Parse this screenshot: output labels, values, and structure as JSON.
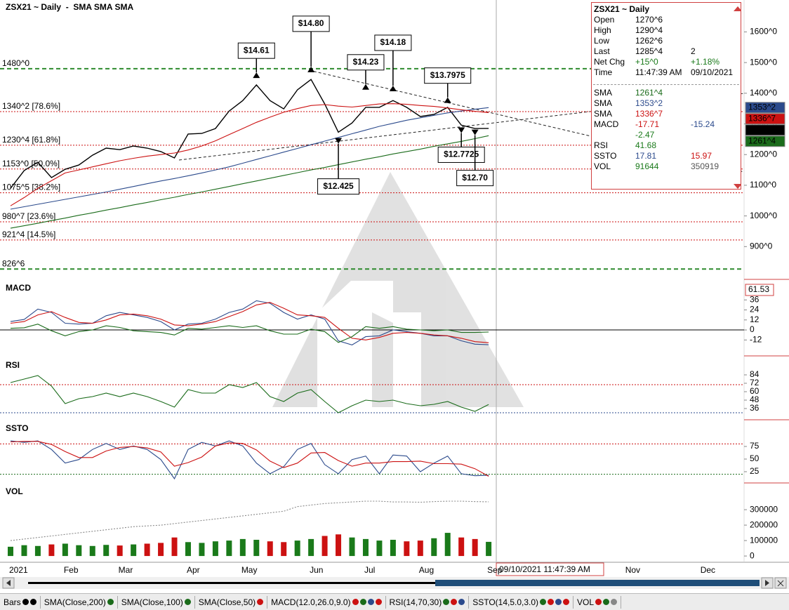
{
  "chart_data": [
    {
      "type": "line",
      "title": "ZSX21 ~ Daily  -  SMA SMA SMA",
      "categories": [
        "2021",
        null,
        null,
        null,
        "Feb",
        null,
        null,
        null,
        "Mar",
        null,
        null,
        null,
        null,
        "Apr",
        null,
        null,
        null,
        "May",
        null,
        null,
        null,
        null,
        "Jun",
        null,
        null,
        null,
        "Jul",
        null,
        null,
        null,
        "Aug",
        null,
        null,
        null,
        null,
        "Sep"
      ],
      "later_months": [
        "Nov",
        "Dec"
      ],
      "ylim": [
        800,
        1704
      ],
      "yticks": [
        {
          "value": 1600,
          "label": "1600^0"
        },
        {
          "value": 1500,
          "label": "1500^0"
        },
        {
          "value": 1400,
          "label": "1400^0"
        },
        {
          "value": 1300,
          "label": "1300^0"
        },
        {
          "value": 1200,
          "label": "1200^0"
        },
        {
          "value": 1100,
          "label": "1100^0"
        },
        {
          "value": 1000,
          "label": "1000^0"
        },
        {
          "value": 900,
          "label": "900^0"
        }
      ],
      "series": [
        {
          "color": "#000000",
          "values": [
            1090,
            1148,
            1175,
            1125,
            1152,
            1166,
            1198,
            1221,
            1216,
            1228,
            1221,
            1210,
            1189,
            1267,
            1269,
            1285,
            1342,
            1376,
            1427,
            1376,
            1349,
            1411,
            1445,
            1365,
            1273,
            1303,
            1354,
            1354,
            1376,
            1354,
            1324,
            1331,
            1354,
            1296,
            1285,
            1285.5
          ]
        },
        {
          "color": "#1a6b1a",
          "values": [
            960,
            968,
            976,
            985,
            993,
            1002,
            1010,
            1019,
            1027,
            1036,
            1044,
            1053,
            1061,
            1070,
            1078,
            1087,
            1096,
            1105,
            1114,
            1123,
            1132,
            1141,
            1150,
            1158,
            1167,
            1176,
            1185,
            1193,
            1202,
            1210,
            1218,
            1227,
            1235,
            1243,
            1252,
            1261.5
          ]
        },
        {
          "color": "#2b4a8c",
          "values": [
            1022,
            1030,
            1038,
            1046,
            1054,
            1062,
            1070,
            1078,
            1087,
            1096,
            1105,
            1114,
            1122,
            1131,
            1140,
            1150,
            1160,
            1172,
            1184,
            1196,
            1208,
            1220,
            1232,
            1244,
            1256,
            1268,
            1280,
            1292,
            1302,
            1312,
            1320,
            1328,
            1336,
            1342,
            1348,
            1353.25
          ]
        },
        {
          "color": "#cc1111",
          "values": [
            1033,
            1060,
            1090,
            1115,
            1140,
            1150,
            1160,
            1170,
            1180,
            1188,
            1195,
            1200,
            1205,
            1215,
            1228,
            1245,
            1265,
            1285,
            1305,
            1322,
            1338,
            1350,
            1360,
            1363,
            1358,
            1355,
            1360,
            1365,
            1366,
            1364,
            1360,
            1357,
            1352,
            1346,
            1341,
            1336.875
          ]
        }
      ],
      "levels": [
        {
          "value": 1480,
          "label": "1480^0",
          "color": "#2e8b2e",
          "style": "dashed"
        },
        {
          "value": 1340.25,
          "label": "1340^2 [78.6%]",
          "color": "#cc1111",
          "style": "dotted"
        },
        {
          "value": 1230.5,
          "label": "1230^4 [61.8%]",
          "color": "#cc1111",
          "style": "dotted"
        },
        {
          "value": 1153,
          "label": "1153^0 [50.0%]",
          "color": "#cc1111",
          "style": "dotted"
        },
        {
          "value": 1075.625,
          "label": "1075^5 [38.2%]",
          "color": "#cc1111",
          "style": "dotted"
        },
        {
          "value": 980.875,
          "label": "980^7 [23.6%]",
          "color": "#cc1111",
          "style": "dotted"
        },
        {
          "value": 921.5,
          "label": "921^4 [14.5%]",
          "color": "#cc1111",
          "style": "dotted"
        },
        {
          "value": 826.75,
          "label": "826^6",
          "color": "#2e8b2e",
          "style": "dashed"
        }
      ],
      "annotations": [
        {
          "x": 18,
          "value": 1461,
          "label": "$14.61"
        },
        {
          "x": 22,
          "value": 1480,
          "label": "$14.80"
        },
        {
          "x": 26,
          "value": 1423,
          "label": "$14.23"
        },
        {
          "x": 28,
          "value": 1418,
          "label": "$14.18"
        },
        {
          "x": 32,
          "value": 1379.75,
          "label": "$13.7975"
        },
        {
          "x": 24,
          "value": 1242.5,
          "label": "$12.425"
        },
        {
          "x": 33,
          "value": 1277.25,
          "label": "$12.7725"
        },
        {
          "x": 34,
          "value": 1270,
          "label": "$12.70"
        }
      ],
      "tags": [
        {
          "value": 1353.25,
          "label": "1353^2",
          "color": "#2b4a8c"
        },
        {
          "value": 1336.875,
          "label": "1336^7",
          "color": "#cc1111"
        },
        {
          "value": 1285.5,
          "label": "1285^4",
          "color": "#000000"
        },
        {
          "value": 1261.5,
          "label": "1261^4",
          "color": "#1a6b1a"
        }
      ]
    },
    {
      "type": "line",
      "title": "MACD",
      "cursor_label": "61.53",
      "ylim": [
        -29.4,
        58.9
      ],
      "yticks": [
        36,
        24,
        12,
        0,
        -12
      ],
      "levels": [
        {
          "value": 0,
          "color": "#000000",
          "style": "solid"
        }
      ],
      "series": [
        {
          "color": "#2b4a8c",
          "values": [
            10,
            12.6,
            25,
            21,
            8,
            7,
            8,
            17,
            21,
            18,
            15,
            10,
            0,
            7,
            8,
            13,
            21,
            25,
            35,
            32,
            21,
            13,
            18,
            13,
            -13,
            -18,
            -8,
            -7,
            0,
            -2,
            -4,
            -7,
            -7,
            -13,
            -17,
            -17.71
          ]
        },
        {
          "color": "#cc1111",
          "values": [
            8,
            10,
            18,
            22,
            15,
            9,
            8,
            12,
            18,
            19,
            17,
            13,
            6,
            5,
            7,
            10,
            16,
            22,
            30,
            33,
            26,
            18,
            17,
            15,
            2,
            -10,
            -12,
            -9,
            -4,
            -3,
            -4,
            -6,
            -7,
            -10,
            -14,
            -15.24
          ]
        },
        {
          "color": "#1a6b1a",
          "values": [
            2,
            2.6,
            7,
            -1,
            -7,
            -2,
            0,
            5,
            3,
            -1,
            -2,
            -3,
            -6,
            2,
            1,
            3,
            5,
            3,
            5,
            -1,
            -5,
            -5,
            1,
            -2,
            -15,
            -8,
            4,
            2,
            4,
            1,
            0,
            -1,
            0,
            -3,
            -3,
            -2.47
          ]
        }
      ]
    },
    {
      "type": "line",
      "title": "RSI",
      "ylim": [
        23,
        108
      ],
      "yticks": [
        84,
        72,
        60,
        48,
        36
      ],
      "levels": [
        {
          "value": 70,
          "color": "#cc1111",
          "style": "dotted"
        },
        {
          "value": 30,
          "color": "#2b4a8c",
          "style": "dotted"
        }
      ],
      "series": [
        {
          "color": "#1a6b1a",
          "values": [
            73,
            78,
            83,
            68,
            43,
            50,
            53,
            58,
            53,
            58,
            53,
            46,
            38,
            63,
            58,
            58,
            70,
            66,
            73,
            53,
            46,
            58,
            63,
            46,
            30,
            40,
            48,
            46,
            48,
            43,
            40,
            42,
            46,
            38,
            32,
            41.68
          ]
        }
      ]
    },
    {
      "type": "line",
      "title": "SSTO",
      "ylim": [
        6.9,
        125
      ],
      "yticks": [
        75,
        50,
        25
      ],
      "levels": [
        {
          "value": 80,
          "color": "#cc1111",
          "style": "dotted"
        },
        {
          "value": 20,
          "color": "#1a6b1a",
          "style": "dotted"
        }
      ],
      "series": [
        {
          "color": "#2b4a8c",
          "values": [
            86,
            83,
            86,
            69,
            42,
            49,
            69,
            81,
            69,
            76,
            69,
            49,
            11,
            69,
            83,
            76,
            86,
            76,
            42,
            21,
            35,
            69,
            81,
            39,
            21,
            49,
            56,
            21,
            58,
            56,
            25,
            42,
            56,
            21,
            17,
            17.81
          ]
        },
        {
          "color": "#cc1111",
          "values": [
            84,
            85,
            85,
            79,
            65,
            53,
            53,
            66,
            73,
            75,
            72,
            64,
            36,
            43,
            54,
            76,
            82,
            81,
            68,
            46,
            33,
            42,
            62,
            63,
            47,
            36,
            42,
            42,
            45,
            45,
            46,
            41,
            41,
            40,
            31,
            15.97
          ]
        }
      ]
    },
    {
      "type": "bar",
      "title": "VOL",
      "ylim": [
        -36000,
        464000
      ],
      "yticks": [
        300000,
        200000,
        100000,
        0
      ],
      "up_color": "#1a7a1a",
      "down_color": "#cc1111",
      "values": [
        60000,
        70000,
        65000,
        75000,
        80000,
        70000,
        65000,
        72000,
        68000,
        75000,
        80000,
        85000,
        120000,
        90000,
        85000,
        95000,
        100000,
        110000,
        105000,
        95000,
        90000,
        100000,
        110000,
        130000,
        140000,
        120000,
        110000,
        100000,
        105000,
        95000,
        100000,
        115000,
        150000,
        120000,
        110000,
        91644
      ],
      "series": [
        {
          "color": "#888888",
          "style": "dotted",
          "values": [
            100000,
            110000,
            120000,
            130000,
            140000,
            150000,
            160000,
            170000,
            180000,
            190000,
            195000,
            200000,
            210000,
            220000,
            230000,
            240000,
            250000,
            260000,
            270000,
            280000,
            290000,
            320000,
            330000,
            340000,
            345000,
            350000,
            355000,
            355000,
            350000,
            350000,
            348000,
            352000,
            355000,
            355000,
            352000,
            350919
          ]
        }
      ]
    }
  ],
  "info_panel": {
    "title": "ZSX21 ~ Daily",
    "rows": [
      {
        "label": "Open",
        "values": [
          "1270^6"
        ],
        "colors": [
          "#000000"
        ]
      },
      {
        "label": "High",
        "values": [
          "1290^4"
        ],
        "colors": [
          "#000000"
        ]
      },
      {
        "label": "Low",
        "values": [
          "1262^6"
        ],
        "colors": [
          "#000000"
        ]
      },
      {
        "label": "Last",
        "values": [
          "1285^4",
          "2"
        ],
        "colors": [
          "#000000",
          "#000000"
        ]
      },
      {
        "label": "Net Chg",
        "values": [
          "+15^0",
          "+1.18%"
        ],
        "colors": [
          "#1a7a1a",
          "#1a7a1a"
        ]
      },
      {
        "label": "Time",
        "values": [
          "11:47:39 AM",
          "09/10/2021"
        ],
        "colors": [
          "#000000",
          "#000000"
        ]
      },
      {
        "label": "SMA",
        "values": [
          "1261^4"
        ],
        "colors": [
          "#1a6b1a"
        ]
      },
      {
        "label": "SMA",
        "values": [
          "1353^2"
        ],
        "colors": [
          "#2b4a8c"
        ]
      },
      {
        "label": "SMA",
        "values": [
          "1336^7"
        ],
        "colors": [
          "#cc1111"
        ]
      },
      {
        "label": "MACD",
        "values": [
          "-17.71",
          "-15.24"
        ],
        "colors": [
          "#cc1111",
          "#2b4a8c"
        ]
      },
      {
        "values": [
          "-2.47"
        ],
        "colors": [
          "#1a7a1a"
        ]
      },
      {
        "label": "RSI",
        "values": [
          "41.68"
        ],
        "colors": [
          "#1a7a1a"
        ]
      },
      {
        "label": "SSTO",
        "values": [
          "17.81",
          "15.97"
        ],
        "colors": [
          "#2b4a8c",
          "#cc1111"
        ]
      },
      {
        "label": "VOL",
        "values": [
          "91644",
          "350919"
        ],
        "colors": [
          "#1a7a1a",
          "#555555"
        ]
      }
    ]
  },
  "status": {
    "datetime": "09/10/2021 11:47:39 AM"
  },
  "toolbar": [
    {
      "label": "Bars",
      "dots": [
        "#000000",
        "#000000"
      ]
    },
    {
      "label": "SMA(Close,200)",
      "dots": [
        "#1a6b1a"
      ]
    },
    {
      "label": "SMA(Close,100)",
      "dots": [
        "#1a6b1a"
      ]
    },
    {
      "label": "SMA(Close,50)",
      "dots": [
        "#cc1111"
      ]
    },
    {
      "label": "MACD(12.0,26.0,9.0)",
      "dots": [
        "#cc1111",
        "#1a6b1a",
        "#2b4a8c",
        "#cc1111"
      ]
    },
    {
      "label": "RSI(14,70,30)",
      "dots": [
        "#1a6b1a",
        "#cc1111",
        "#2b4a8c"
      ]
    },
    {
      "label": "SSTO(14,5.0,3.0)",
      "dots": [
        "#1a6b1a",
        "#cc1111",
        "#2b4a8c",
        "#cc1111"
      ]
    },
    {
      "label": "VOL",
      "dots": [
        "#cc1111",
        "#1a6b1a",
        "#888888"
      ]
    }
  ]
}
